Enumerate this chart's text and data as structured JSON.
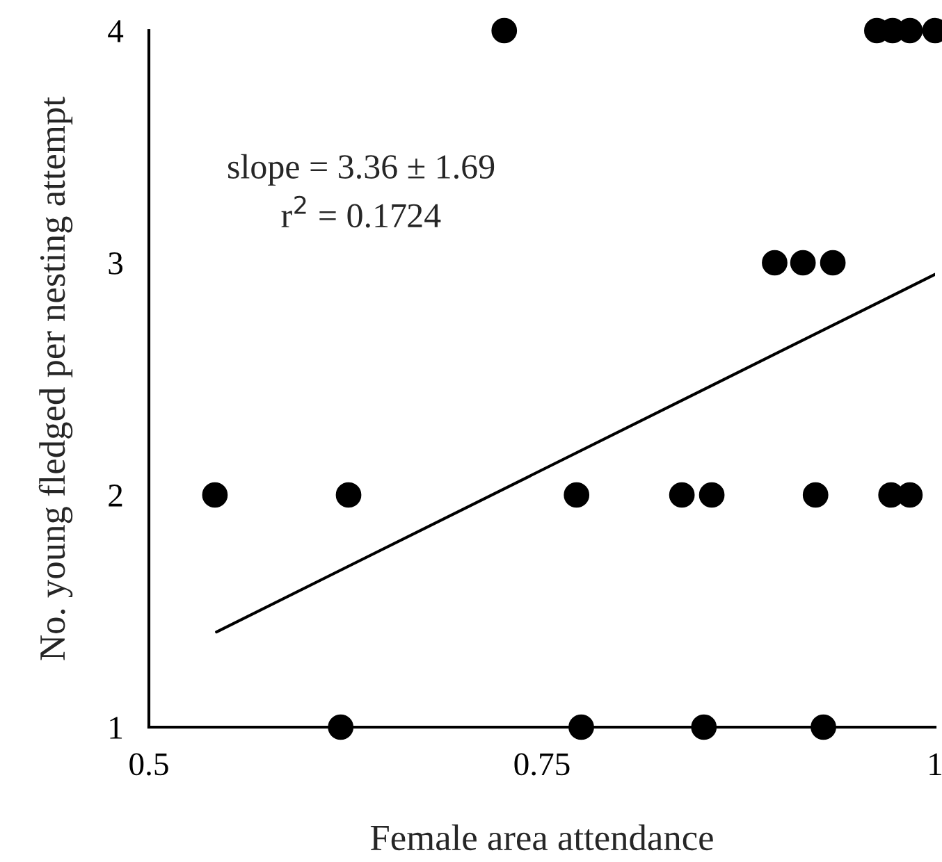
{
  "chart_data": {
    "type": "scatter",
    "xlabel": "Female area attendance",
    "ylabel": "No. young fledged per nesting attempt",
    "xlim": [
      0.5,
      1
    ],
    "xticks": [
      0.5,
      0.75,
      1
    ],
    "ylim": [
      1,
      4
    ],
    "yticks": [
      1,
      2,
      3,
      4
    ],
    "grid": false,
    "legend": false,
    "series": [
      {
        "marker": "circle",
        "color": "#000000",
        "x": [
          0.726,
          0.963,
          0.973,
          0.984,
          1.0,
          0.898,
          0.916,
          0.935,
          0.542,
          0.627,
          0.772,
          0.839,
          0.858,
          0.924,
          0.972,
          0.984,
          0.622,
          0.775,
          0.853,
          0.929
        ],
        "values": [
          4,
          4,
          4,
          4,
          4,
          3,
          3,
          3,
          2,
          2,
          2,
          2,
          2,
          2,
          2,
          2,
          1,
          1,
          1,
          1
        ]
      },
      {
        "type": "line",
        "marker": "none",
        "color": "#000000",
        "x": [
          0.543,
          1.0
        ],
        "values": [
          1.41,
          2.95
        ]
      }
    ],
    "annotations": [
      "slope = 3.36 ± 1.69",
      "r$^{2}$ = 0.1724"
    ]
  }
}
